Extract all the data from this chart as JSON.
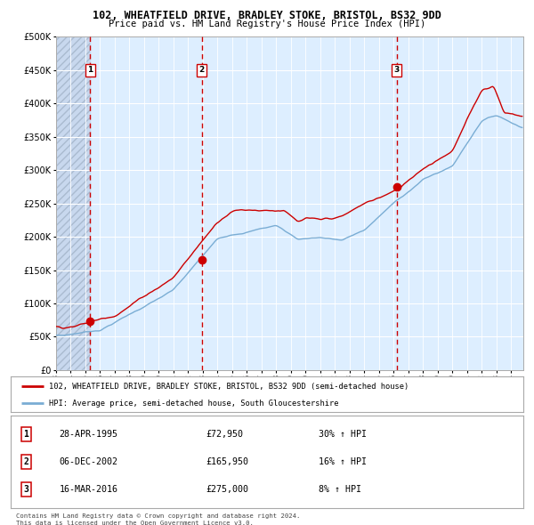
{
  "title1": "102, WHEATFIELD DRIVE, BRADLEY STOKE, BRISTOL, BS32 9DD",
  "title2": "Price paid vs. HM Land Registry's House Price Index (HPI)",
  "legend_line1": "102, WHEATFIELD DRIVE, BRADLEY STOKE, BRISTOL, BS32 9DD (semi-detached house)",
  "legend_line2": "HPI: Average price, semi-detached house, South Gloucestershire",
  "red_color": "#cc0000",
  "blue_color": "#7aadd4",
  "background_chart": "#ddeeff",
  "background_hatch_color": "#c8d8ee",
  "transactions": [
    {
      "num": 1,
      "date": "28-APR-1995",
      "price": 72950,
      "hpi_pct": "30% ↑ HPI",
      "x_year": 1995.32
    },
    {
      "num": 2,
      "date": "06-DEC-2002",
      "price": 165950,
      "hpi_pct": "16% ↑ HPI",
      "x_year": 2002.92
    },
    {
      "num": 3,
      "date": "16-MAR-2016",
      "price": 275000,
      "hpi_pct": "8% ↑ HPI",
      "x_year": 2016.21
    }
  ],
  "footnote1": "Contains HM Land Registry data © Crown copyright and database right 2024.",
  "footnote2": "This data is licensed under the Open Government Licence v3.0.",
  "ylim": [
    0,
    500000
  ],
  "xlim_start": 1993.0,
  "xlim_end": 2024.83
}
